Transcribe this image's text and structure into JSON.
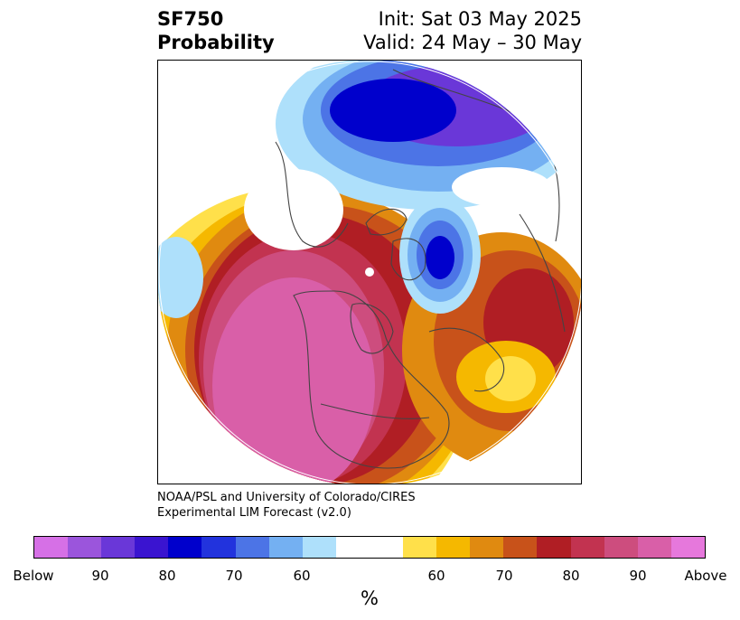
{
  "header": {
    "title_line1": "SF750",
    "title_line2": "Probability",
    "init_line": "Init: Sat 03 May 2025",
    "valid_line": "Valid: 24 May – 30 May"
  },
  "credit": {
    "line1": "NOAA/PSL and University of Colorado/CIRES",
    "line2": "Experimental LIM Forecast (v2.0)"
  },
  "colorbar": {
    "colors": [
      "#d670e6",
      "#9b55dc",
      "#6a37d8",
      "#3a14d0",
      "#0000cc",
      "#2233dd",
      "#4c74e6",
      "#74b0f2",
      "#aee0fb",
      "#ffffff",
      "#ffe04a",
      "#f5b800",
      "#e08a10",
      "#c8521a",
      "#b01e24",
      "#c23350",
      "#cd4d7e",
      "#d95fa8",
      "#e678dc"
    ],
    "tick_labels": [
      "Below",
      "90",
      "80",
      "70",
      "60",
      "60",
      "70",
      "80",
      "90",
      "Above"
    ],
    "units": "%"
  },
  "map": {
    "projection": "north-polar-stereographic",
    "legend_meaning": "below-normal probability shown in purple/blue; above-normal probability shown in yellow/orange/red/pink"
  }
}
